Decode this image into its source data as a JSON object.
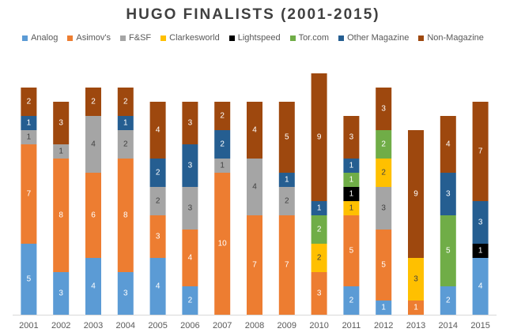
{
  "chart_data": {
    "type": "bar",
    "stacked": true,
    "title": "HUGO FINALISTS (2001-2015)",
    "xlabel": "",
    "ylabel": "",
    "ylim": [
      0,
      17
    ],
    "grid": false,
    "legend_position": "top",
    "categories": [
      "2001",
      "2002",
      "2003",
      "2004",
      "2005",
      "2006",
      "2007",
      "2008",
      "2009",
      "2010",
      "2011",
      "2012",
      "2013",
      "2014",
      "2015"
    ],
    "series": [
      {
        "name": "Analog",
        "color": "#5b9bd5",
        "values": [
          5,
          3,
          4,
          3,
          4,
          2,
          0,
          0,
          0,
          0,
          2,
          1,
          0,
          2,
          4
        ]
      },
      {
        "name": "Asimov's",
        "color": "#ed7d31",
        "values": [
          7,
          8,
          6,
          8,
          3,
          4,
          10,
          7,
          7,
          3,
          5,
          5,
          1,
          0,
          0
        ]
      },
      {
        "name": "F&SF",
        "color": "#a5a5a5",
        "values": [
          1,
          1,
          4,
          2,
          2,
          3,
          1,
          4,
          2,
          0,
          0,
          3,
          0,
          0,
          0
        ]
      },
      {
        "name": "Clarkesworld",
        "color": "#ffc000",
        "values": [
          0,
          0,
          0,
          0,
          0,
          0,
          0,
          0,
          0,
          2,
          1,
          2,
          3,
          0,
          0
        ]
      },
      {
        "name": "Lightspeed",
        "color": "#000000",
        "values": [
          0,
          0,
          0,
          0,
          0,
          0,
          0,
          0,
          0,
          0,
          1,
          0,
          0,
          0,
          1
        ]
      },
      {
        "name": "Tor.com",
        "color": "#70ad47",
        "values": [
          0,
          0,
          0,
          0,
          0,
          0,
          0,
          0,
          0,
          2,
          1,
          2,
          0,
          5,
          0
        ]
      },
      {
        "name": "Other Magazine",
        "color": "#255e91",
        "values": [
          1,
          0,
          0,
          1,
          2,
          3,
          2,
          0,
          1,
          1,
          1,
          0,
          0,
          3,
          3
        ]
      },
      {
        "name": "Non-Magazine",
        "color": "#9e480e",
        "values": [
          2,
          3,
          2,
          2,
          4,
          3,
          2,
          4,
          5,
          9,
          3,
          3,
          9,
          4,
          7
        ]
      }
    ]
  }
}
